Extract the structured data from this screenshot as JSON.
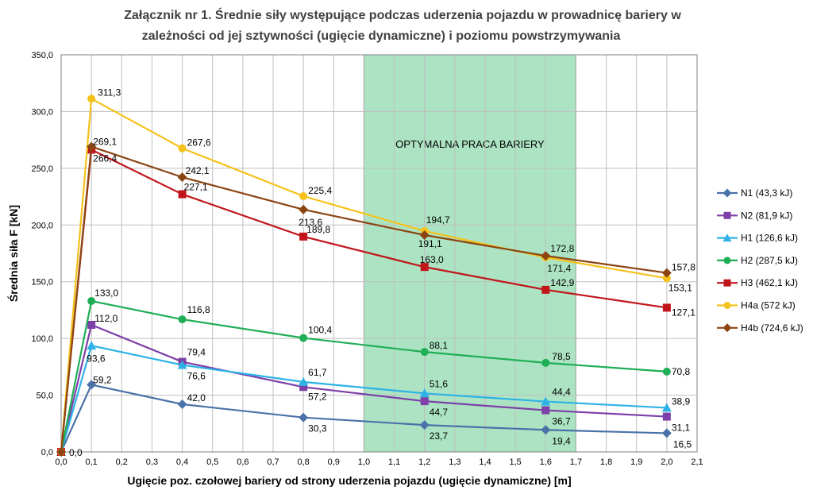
{
  "chart_data": {
    "type": "line",
    "title": "Załącznik nr 1. Średnie siły występujące podczas uderzenia pojazdu w prowadnicę bariery w zależności od jej sztywności (ugięcie dynamiczne) i poziomu powstrzymywania",
    "title_lines": [
      "Załącznik nr 1. Średnie siły występujące podczas uderzenia pojazdu w prowadnicę bariery w",
      "zależności od jej sztywności (ugięcie dynamiczne) i poziomu powstrzymywania"
    ],
    "xlabel": "Ugięcie poz. czołowej bariery od strony uderzenia pojazdu (ugięcie dynamiczne)  [m]",
    "ylabel": "Średnia siła F [kN]",
    "xlim": [
      0,
      2.1
    ],
    "ylim": [
      0,
      350
    ],
    "x_ticks": [
      "0,0",
      "0,1",
      "0,2",
      "0,3",
      "0,4",
      "0,5",
      "0,6",
      "0,7",
      "0,8",
      "0,9",
      "1,0",
      "1,1",
      "1,2",
      "1,3",
      "1,4",
      "1,5",
      "1,6",
      "1,7",
      "1,8",
      "1,9",
      "2,0",
      "2,1"
    ],
    "y_ticks": [
      "0,0",
      "50,0",
      "100,0",
      "150,0",
      "200,0",
      "250,0",
      "300,0",
      "350,0"
    ],
    "grid": true,
    "legend_position": "right",
    "band": {
      "x_start": 1.0,
      "x_end": 1.7,
      "label": "OPTYMALNA PRACA BARIERY",
      "color": "#9ddfb8"
    },
    "x": [
      0,
      0.1,
      0.4,
      0.8,
      1.2,
      1.6,
      2.0
    ],
    "series": [
      {
        "name": "N1 (43,3 kJ)",
        "color": "#4a72a8",
        "marker": "diamond",
        "values": [
          0,
          59.2,
          42.0,
          30.3,
          23.7,
          19.4,
          16.5
        ],
        "labels": [
          "",
          "59,2",
          "42,0",
          "30,3",
          "23,7",
          "19,4",
          "16,5"
        ]
      },
      {
        "name": "N2 (81,9 kJ)",
        "color": "#7d3fa8",
        "marker": "square",
        "values": [
          0,
          112.0,
          79.4,
          57.2,
          44.7,
          36.7,
          31.1
        ],
        "labels": [
          "",
          "112,0",
          "79,4",
          "57,2",
          "44,7",
          "36,7",
          "31,1"
        ]
      },
      {
        "name": "H1 (126,6 kJ)",
        "color": "#2eb2e6",
        "marker": "triangle",
        "values": [
          0,
          93.6,
          76.6,
          61.7,
          51.6,
          44.4,
          38.9
        ],
        "labels": [
          "",
          "93,6",
          "76,6",
          "61,7",
          "51,6",
          "44,4",
          "38,9"
        ]
      },
      {
        "name": "H2 (287,5 kJ)",
        "color": "#1fae55",
        "marker": "circle",
        "values": [
          0,
          133.0,
          116.8,
          100.4,
          88.1,
          78.5,
          70.8
        ],
        "labels": [
          "",
          "133,0",
          "116,8",
          "100,4",
          "88,1",
          "78,5",
          "70,8"
        ]
      },
      {
        "name": "H3 (462,1 kJ)",
        "color": "#c0161b",
        "marker": "square",
        "values": [
          0,
          266.4,
          227.1,
          189.8,
          163.0,
          142.9,
          127.1
        ],
        "labels": [
          "",
          "266,4",
          "227,1",
          "189,8",
          "163,0",
          "142,9",
          "127,1"
        ]
      },
      {
        "name": "H4a (572 kJ)",
        "color": "#f5c21b",
        "marker": "circle",
        "values": [
          0,
          311.3,
          267.6,
          225.4,
          194.7,
          171.4,
          153.1
        ],
        "labels": [
          "0,0",
          "311,3",
          "267,6",
          "225,4",
          "194,7",
          "171,4",
          "153,1"
        ]
      },
      {
        "name": "H4b (724,6 kJ)",
        "color": "#8b4513",
        "marker": "diamond",
        "values": [
          0,
          269.1,
          242.1,
          213.6,
          191.1,
          172.8,
          157.8
        ],
        "labels": [
          "",
          "269,1",
          "242,1",
          "213,6",
          "191,1",
          "172,8",
          "157,8"
        ]
      }
    ]
  }
}
